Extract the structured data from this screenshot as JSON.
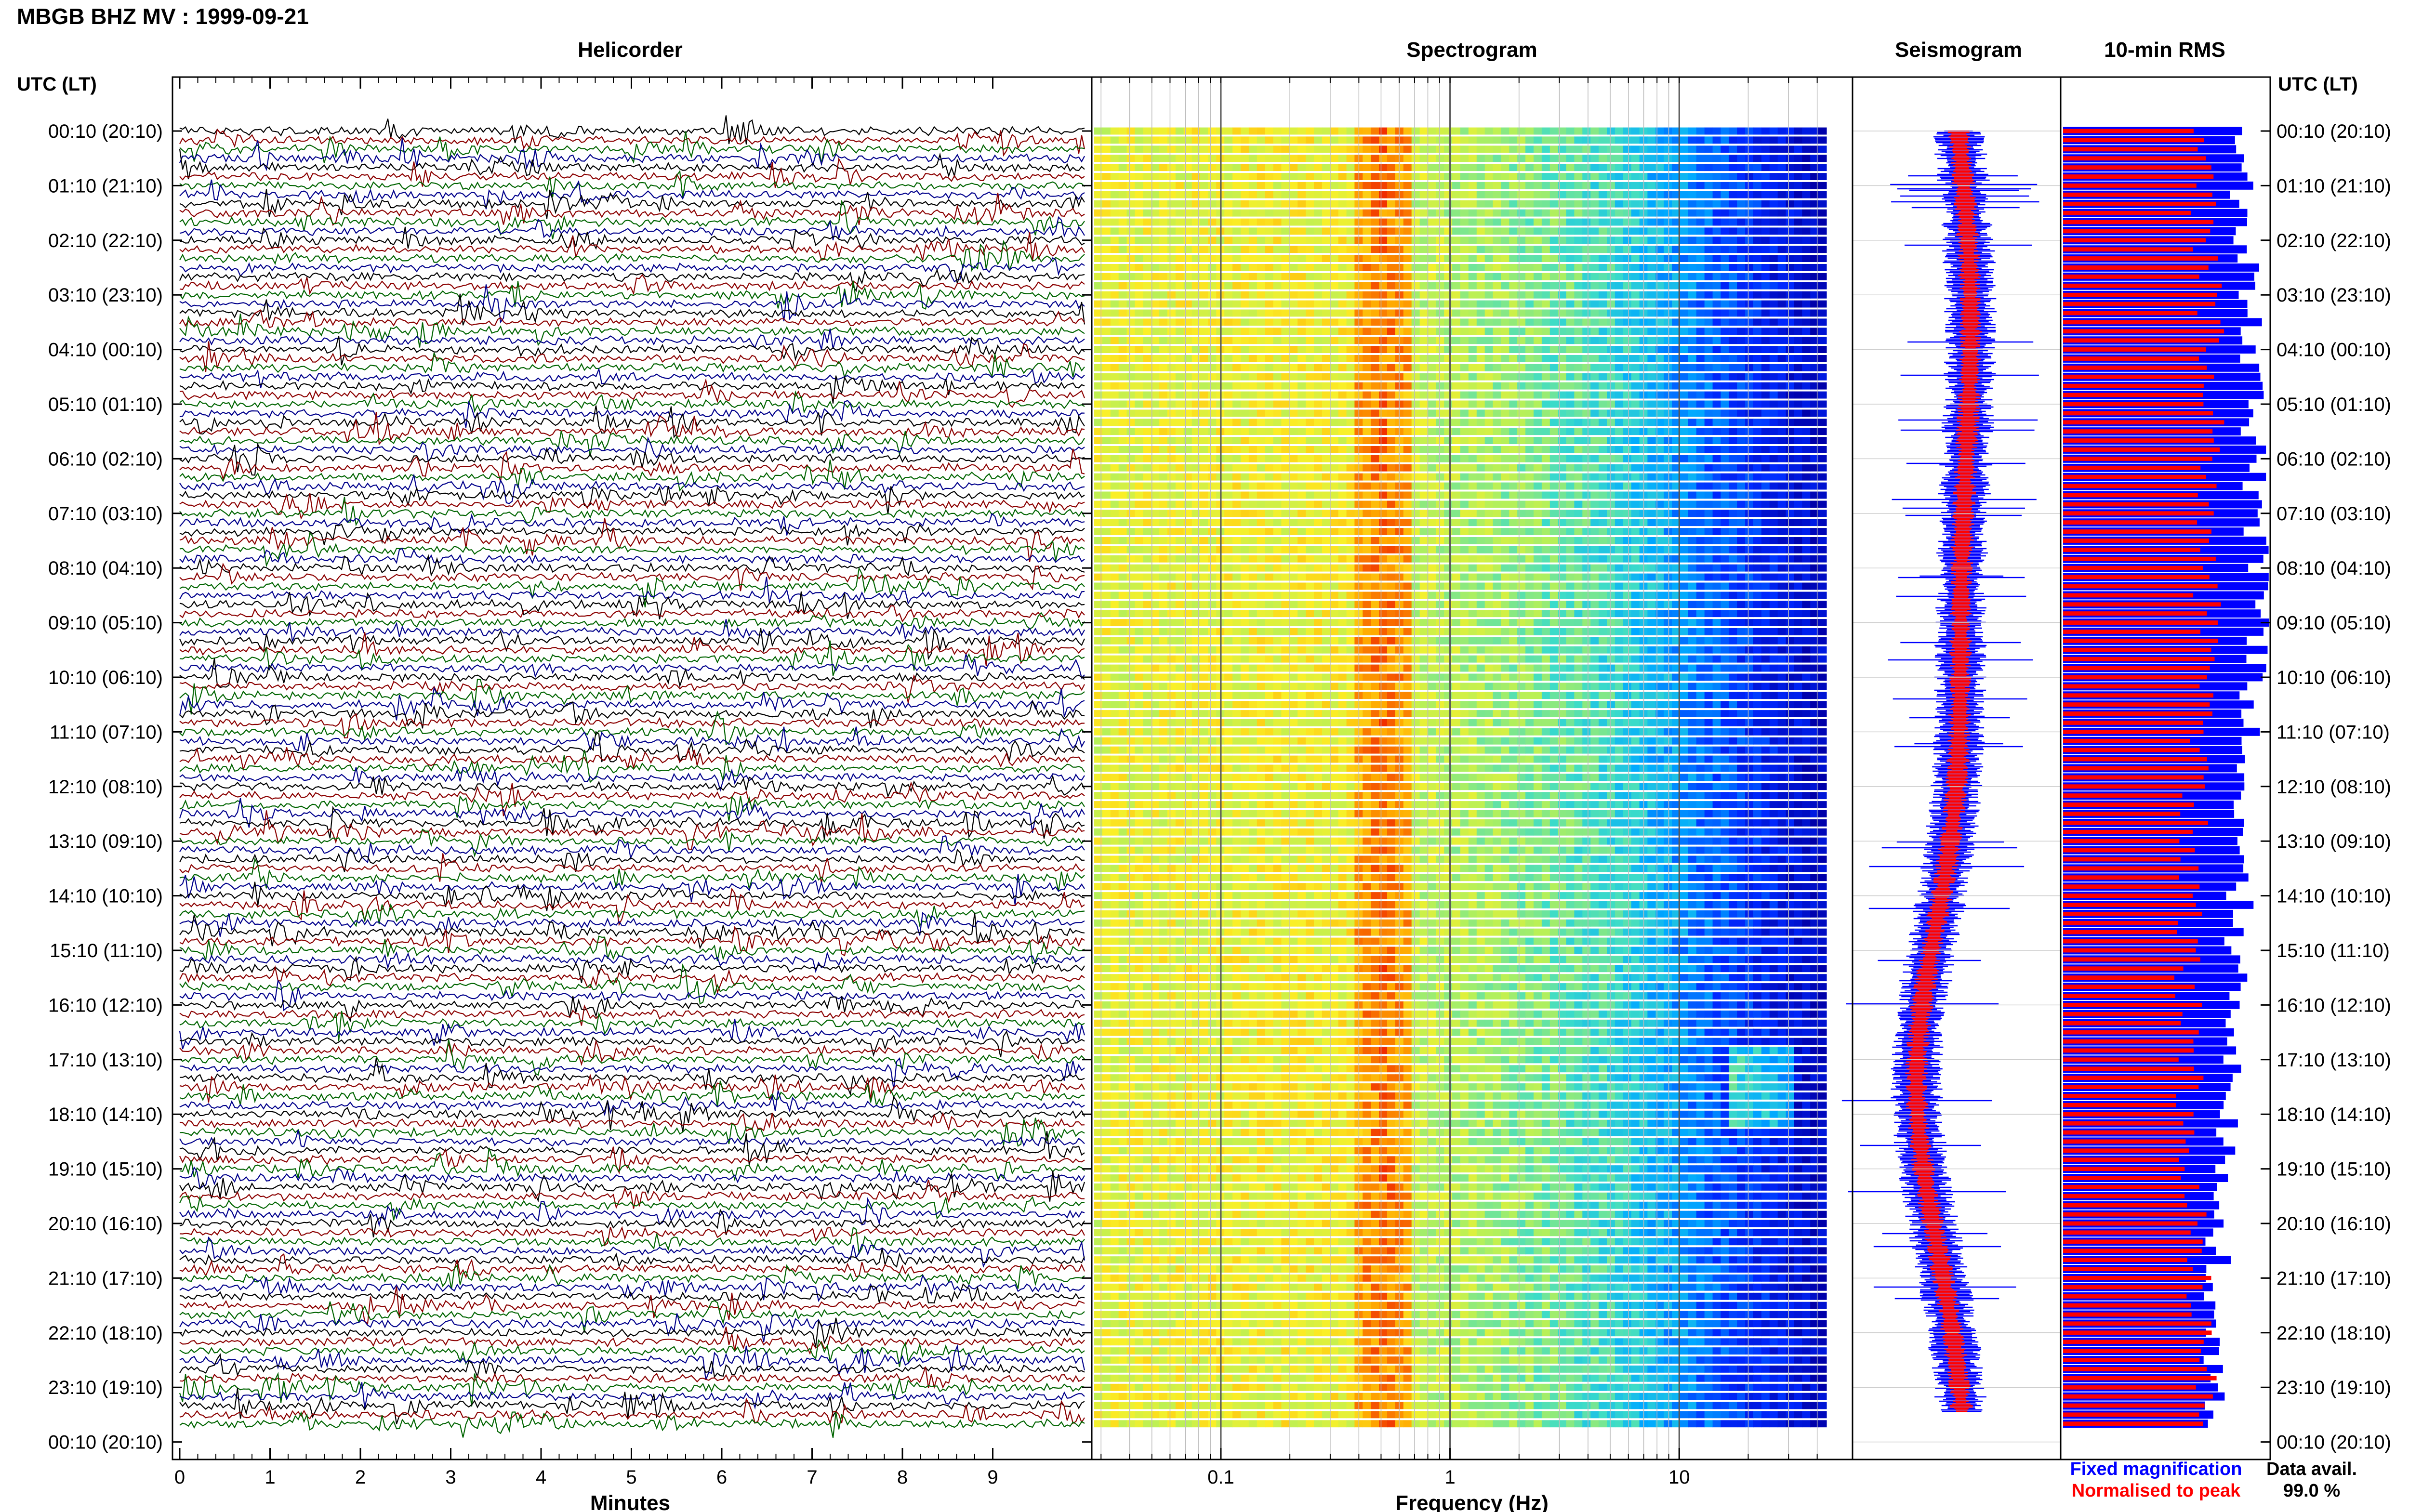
{
  "header": {
    "title": "MBGB BHZ MV : 1999-09-21"
  },
  "panels": {
    "helicorder": "Helicorder",
    "spectrogram": "Spectrogram",
    "seismogram": "Seismogram",
    "rms": "10-min RMS"
  },
  "axes": {
    "time_label_left": "UTC (LT)",
    "time_label_right": "UTC (LT)",
    "minutes_label": "Minutes",
    "frequency_label": "Frequency (Hz)"
  },
  "legend": {
    "fixed": "Fixed magnification",
    "normalised": "Normalised to peak",
    "fixed_color": "#0000ff",
    "normalised_color": "#ff0000"
  },
  "data_avail": {
    "label": "Data avail.",
    "value": "99.0 %"
  },
  "colors": {
    "trace_cycle": [
      "#000000",
      "#8b0000",
      "#006400",
      "#00008b"
    ],
    "rms_fixed": "#0000ff",
    "rms_norm": "#ff0000"
  },
  "chart_data": {
    "type": "helicorder",
    "time_ticks": [
      "00:10 (20:10)",
      "01:10 (21:10)",
      "02:10 (22:10)",
      "03:10 (23:10)",
      "04:10 (00:10)",
      "05:10 (01:10)",
      "06:10 (02:10)",
      "07:10 (03:10)",
      "08:10 (04:10)",
      "09:10 (05:10)",
      "10:10 (06:10)",
      "11:10 (07:10)",
      "12:10 (08:10)",
      "13:10 (09:10)",
      "14:10 (10:10)",
      "15:10 (11:10)",
      "16:10 (12:10)",
      "17:10 (13:10)",
      "18:10 (14:10)",
      "19:10 (15:10)",
      "20:10 (16:10)",
      "21:10 (17:10)",
      "22:10 (18:10)",
      "23:10 (19:10)",
      "00:10 (20:10)"
    ],
    "minutes_ticks": [
      "0",
      "1",
      "2",
      "3",
      "4",
      "5",
      "6",
      "7",
      "8",
      "9"
    ],
    "frequency_ticks": [
      "0.1",
      "1",
      "10"
    ],
    "frequency_log_range": [
      0.028,
      45
    ],
    "rows_per_hour": 6,
    "row_count": 143,
    "data_available_percent": 99.0
  }
}
